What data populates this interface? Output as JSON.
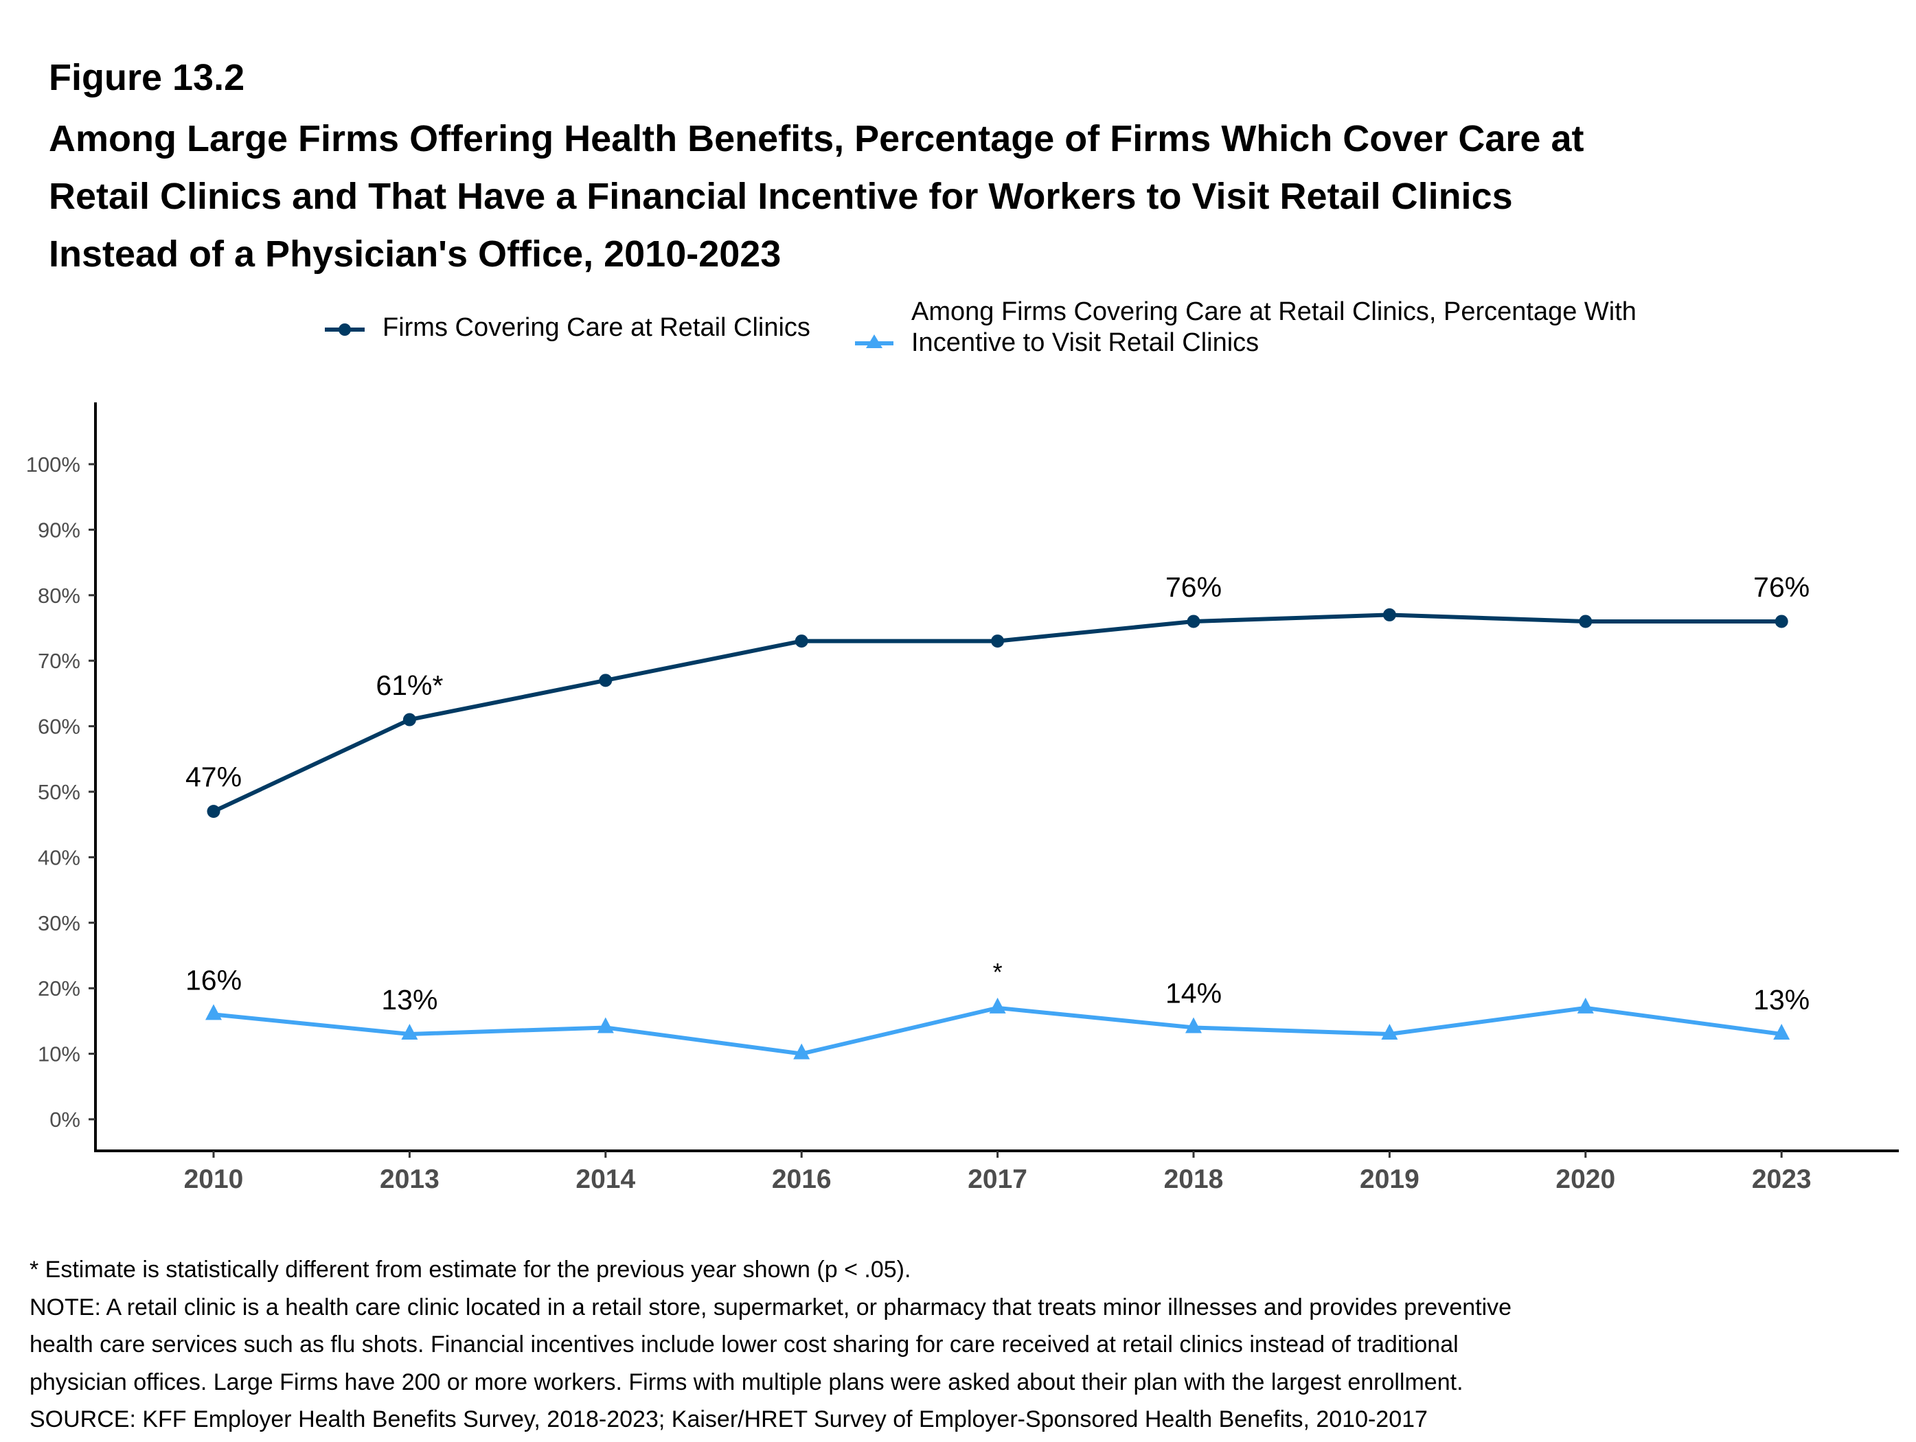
{
  "figure_label": "Figure 13.2",
  "title_lines": [
    "Among Large Firms Offering Health Benefits, Percentage of Firms Which Cover Care at",
    "Retail Clinics and That Have a Financial Incentive for Workers to Visit Retail Clinics",
    "Instead of a Physician's Office, 2010-2023"
  ],
  "legend": {
    "items": [
      {
        "label_lines": [
          "Firms Covering Care at Retail Clinics"
        ],
        "marker": "circle-icon",
        "color": "#003A63"
      },
      {
        "label_lines": [
          "Among Firms Covering Care at Retail Clinics, Percentage With",
          "Incentive to Visit Retail Clinics"
        ],
        "marker": "triangle-icon",
        "color": "#41A5F5"
      }
    ]
  },
  "chart_data": {
    "type": "line",
    "title": "Among Large Firms Offering Health Benefits, Percentage of Firms Which Cover Care at Retail Clinics and That Have a Financial Incentive for Workers to Visit Retail Clinics Instead of a Physician's Office, 2010-2023",
    "xlabel": "",
    "ylabel": "",
    "categories": [
      "2010",
      "2013",
      "2014",
      "2016",
      "2017",
      "2018",
      "2019",
      "2020",
      "2023"
    ],
    "ylim": [
      0,
      100
    ],
    "yticks": [
      "0%",
      "10%",
      "20%",
      "30%",
      "40%",
      "50%",
      "60%",
      "70%",
      "80%",
      "90%",
      "100%"
    ],
    "ytick_values": [
      0,
      10,
      20,
      30,
      40,
      50,
      60,
      70,
      80,
      90,
      100
    ],
    "grid": false,
    "legend_position": "top",
    "series": [
      {
        "name": "Firms Covering Care at Retail Clinics",
        "color": "#003A63",
        "marker": "circle",
        "values": [
          47,
          61,
          67,
          73,
          73,
          76,
          77,
          76,
          76
        ],
        "labels": [
          "47%",
          "61%*",
          "",
          "",
          "",
          "76%",
          "",
          "",
          "76%"
        ]
      },
      {
        "name": "Among Firms Covering Care at Retail Clinics, Percentage With Incentive to Visit Retail Clinics",
        "color": "#41A5F5",
        "marker": "triangle",
        "values": [
          16,
          13,
          14,
          10,
          17,
          14,
          13,
          17,
          13
        ],
        "labels": [
          "16%",
          "13%",
          "",
          "",
          "*",
          "14%",
          "",
          "",
          "13%"
        ]
      }
    ]
  },
  "footnotes": [
    "* Estimate is statistically different from estimate for the previous year shown (p < .05).",
    "NOTE: A retail clinic is a health care clinic located in a retail store, supermarket, or pharmacy that treats minor illnesses and provides preventive",
    "health care services such as flu shots. Financial incentives include lower cost sharing for care received at retail clinics instead of traditional",
    "physician offices.  Large Firms have 200 or more workers.  Firms with multiple plans were asked about their plan with the largest enrollment.",
    "SOURCE: KFF Employer Health Benefits Survey, 2018-2023; Kaiser/HRET Survey of Employer-Sponsored Health Benefits, 2010-2017"
  ]
}
